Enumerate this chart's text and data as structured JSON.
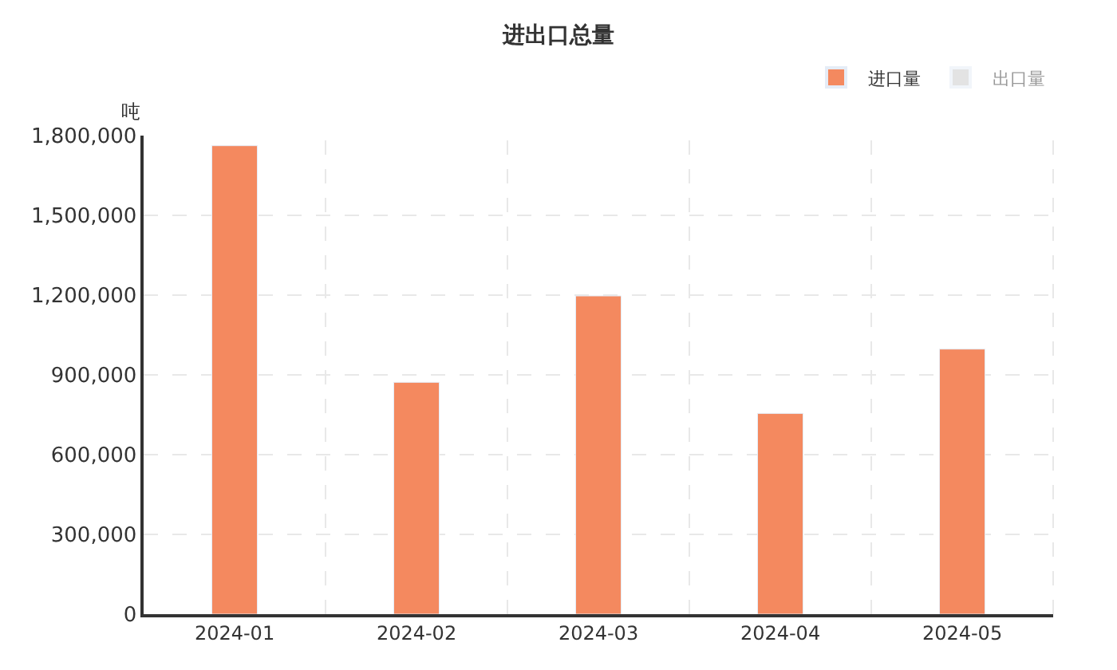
{
  "chart_data": {
    "type": "bar",
    "title": "进出口总量",
    "ylabel": "吨",
    "categories": [
      "2024-01",
      "2024-02",
      "2024-03",
      "2024-04",
      "2024-05"
    ],
    "series": [
      {
        "name": "进口量",
        "color": "#f4895f",
        "values": [
          1762000,
          872000,
          1197000,
          755000,
          997000
        ]
      },
      {
        "name": "出口量",
        "color": "#c8c8c8",
        "values": [
          null,
          null,
          null,
          null,
          null
        ]
      }
    ],
    "ylim": [
      0,
      1800000
    ],
    "yticks": [
      {
        "value": 0,
        "label": "0"
      },
      {
        "value": 300000,
        "label": "300,000"
      },
      {
        "value": 600000,
        "label": "600,000"
      },
      {
        "value": 900000,
        "label": "900,000"
      },
      {
        "value": 1200000,
        "label": "1,200,000"
      },
      {
        "value": 1500000,
        "label": "1,500,000"
      },
      {
        "value": 1800000,
        "label": "1,800,000"
      }
    ],
    "grid": true,
    "legend": "top right"
  }
}
